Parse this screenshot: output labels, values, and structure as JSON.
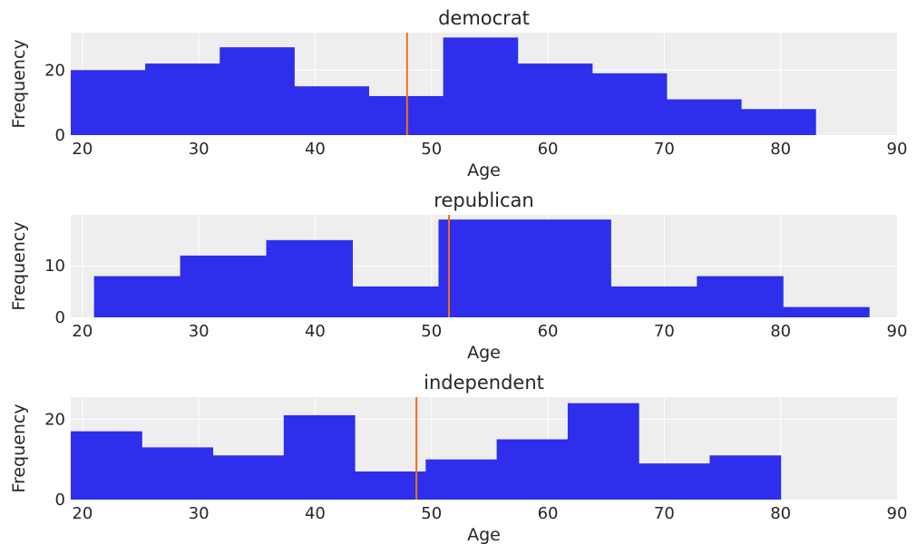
{
  "chart_data": [
    {
      "type": "bar",
      "title": "democrat",
      "xlabel": "Age",
      "ylabel": "Frequency",
      "xlim": [
        19,
        90
      ],
      "ylim": [
        0,
        31.5
      ],
      "xticks": [
        20,
        30,
        40,
        50,
        60,
        70,
        80,
        90
      ],
      "yticks": [
        0,
        20
      ],
      "grid": true,
      "bin_edges": [
        19,
        25.4,
        31.8,
        38.2,
        44.6,
        51,
        57.4,
        63.8,
        70.2,
        76.6,
        83
      ],
      "values": [
        20,
        22,
        27,
        15,
        12,
        30,
        22,
        19,
        11,
        8
      ],
      "bar_color": "#2e2eec",
      "mean_line": 47.9,
      "mean_line_color": "#f07016"
    },
    {
      "type": "bar",
      "title": "republican",
      "xlabel": "Age",
      "ylabel": "Frequency",
      "xlim": [
        19,
        90
      ],
      "ylim": [
        0,
        19.9
      ],
      "xticks": [
        20,
        30,
        40,
        50,
        60,
        70,
        80,
        90
      ],
      "yticks": [
        0,
        10
      ],
      "grid": true,
      "bin_edges": [
        21,
        28.4,
        35.8,
        43.2,
        50.6,
        58,
        65.4,
        72.8,
        80.2,
        87.6,
        95
      ],
      "values": [
        8,
        12,
        15,
        6,
        19,
        19,
        6,
        8,
        2,
        0
      ],
      "bar_color": "#2e2eec",
      "mean_line": 51.5,
      "mean_line_color": "#f07016"
    },
    {
      "type": "bar",
      "title": "independent",
      "xlabel": "Age",
      "ylabel": "Frequency",
      "xlim": [
        19,
        90
      ],
      "ylim": [
        0,
        25.5
      ],
      "xticks": [
        20,
        30,
        40,
        50,
        60,
        70,
        80,
        90
      ],
      "yticks": [
        0,
        20
      ],
      "grid": true,
      "bin_edges": [
        19,
        25.1,
        31.2,
        37.3,
        43.4,
        49.5,
        55.6,
        61.7,
        67.8,
        73.9,
        80
      ],
      "values": [
        17,
        13,
        11,
        21,
        7,
        10,
        15,
        24,
        9,
        11
      ],
      "bar_color": "#2e2eec",
      "mean_line": 48.7,
      "mean_line_color": "#f07016"
    }
  ]
}
